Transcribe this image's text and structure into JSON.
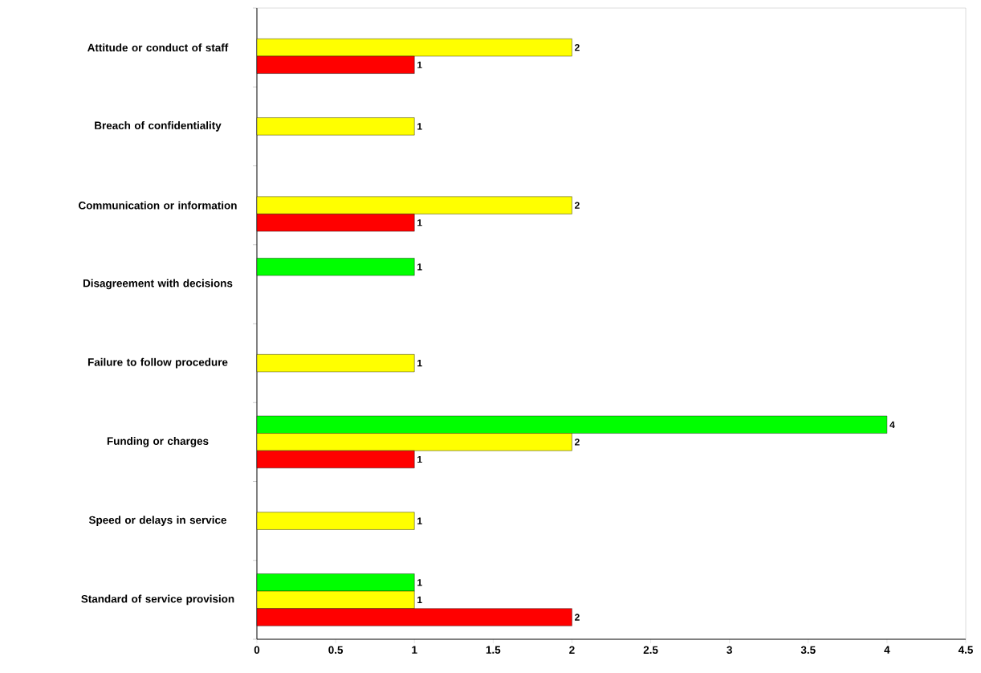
{
  "chart_data": {
    "type": "bar",
    "orientation": "horizontal",
    "data_labels": true,
    "categories": [
      "Attitude or conduct of staff",
      "Breach of confidentiality",
      "Communication or information",
      "Disagreement with decisions",
      "Failure to follow procedure",
      "Funding or charges",
      "Speed or delays in service",
      "Standard of service provision"
    ],
    "series": [
      {
        "color": "#00ff00",
        "values": [
          null,
          null,
          null,
          1,
          null,
          4,
          null,
          1
        ]
      },
      {
        "color": "#ffff00",
        "values": [
          2,
          1,
          2,
          null,
          1,
          2,
          1,
          1
        ]
      },
      {
        "color": "#ff0000",
        "values": [
          1,
          null,
          1,
          null,
          null,
          1,
          null,
          2
        ]
      }
    ],
    "xlim": [
      0,
      4.5
    ],
    "xticks": [
      0,
      0.5,
      1,
      1.5,
      2,
      2.5,
      3,
      3.5,
      4,
      4.5
    ]
  }
}
